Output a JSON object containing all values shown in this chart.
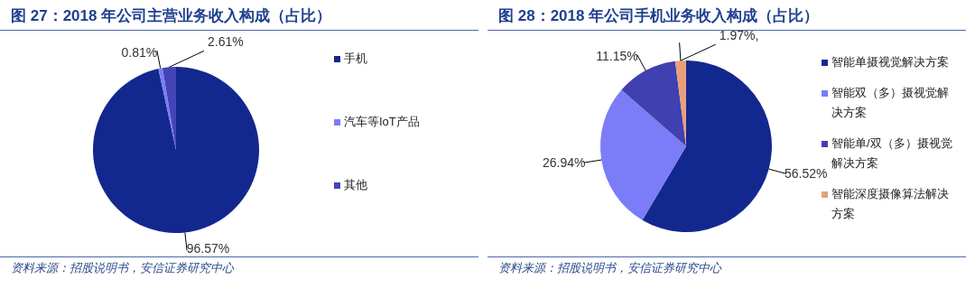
{
  "chart_data": [
    {
      "type": "pie",
      "title": "图 27：2018 年公司主营业务收入构成（占比）",
      "categories": [
        "手机",
        "汽车等IoT产品",
        "其他"
      ],
      "values": [
        96.57,
        0.81,
        2.61
      ],
      "colors": [
        "#13288f",
        "#7b7cf7",
        "#4444b8"
      ],
      "value_labels": [
        "96.57%",
        "0.81%",
        "2.61%"
      ],
      "legend": "right",
      "annotations": [
        "资料来源：招股说明书，安信证券研究中心"
      ]
    },
    {
      "type": "pie",
      "title": "图 28：2018 年公司手机业务收入构成（占比）",
      "categories": [
        "智能单摄视觉解决方案",
        "智能双（多）摄视觉解决方案",
        "智能单/双（多）摄视觉解决方案",
        "智能深度摄像算法解决方案"
      ],
      "values": [
        56.52,
        26.94,
        11.15,
        1.97
      ],
      "colors": [
        "#13288f",
        "#7b7cf7",
        "#4040b0",
        "#e8a07a"
      ],
      "value_labels": [
        "56.52%",
        "26.94%",
        "11.15%",
        "1.97%,"
      ],
      "legend": "right",
      "annotations": [
        "资料来源：招股说明书，安信证券研究中心"
      ]
    }
  ]
}
